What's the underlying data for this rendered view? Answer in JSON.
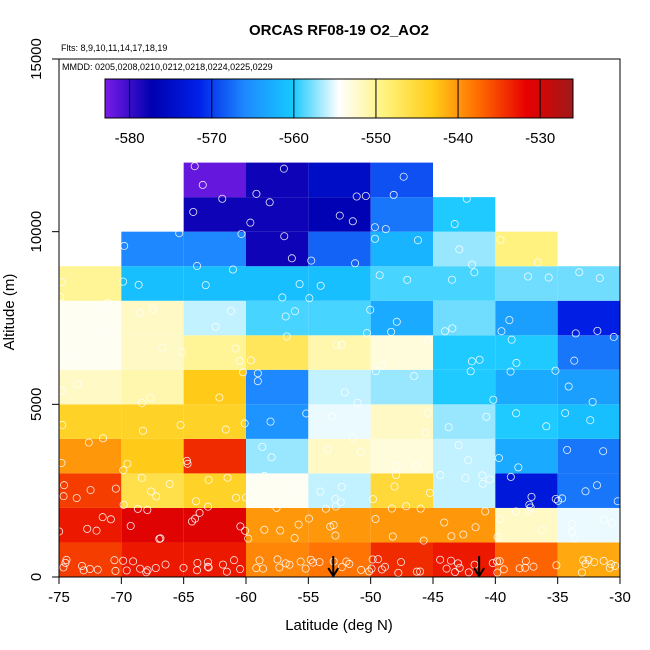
{
  "chart_data": {
    "type": "heatmap",
    "title": "ORCAS RF08-19 O2_AO2",
    "flights_note": "Flts: 8,9,10,11,14,17,18,19",
    "dates_note": "MMDD: 0205,0208,0210,0212,0218,0224,0225,0229",
    "xlabel": "Latitude (deg N)",
    "ylabel": "Altitude (m)",
    "xlim": [
      -75,
      -30
    ],
    "ylim": [
      0,
      15000
    ],
    "x_ticks": [
      "-75",
      "-70",
      "-65",
      "-60",
      "-55",
      "-50",
      "-45",
      "-40",
      "-35",
      "-30"
    ],
    "y_ticks": [
      "0",
      "5000",
      "10000",
      "15000"
    ],
    "y_tick_values": [
      0,
      5000,
      10000,
      15000
    ],
    "colorbar": {
      "range": [
        -583,
        -526
      ],
      "ticks": [
        "-580",
        "-570",
        "-560",
        "-550",
        "-540",
        "-530"
      ],
      "tick_values": [
        -580,
        -570,
        -560,
        -550,
        -540,
        -530
      ],
      "colors": [
        "#7a1ce8",
        "#0000b0",
        "#0020e8",
        "#1e8aff",
        "#16c8ff",
        "#ffffff",
        "#fff27a",
        "#ffcc18",
        "#ff6a00",
        "#e80000",
        "#a01818"
      ]
    },
    "lat_bins": [
      -75,
      -70,
      -65,
      -60,
      -55,
      -50,
      -45,
      -40,
      -35
    ],
    "alt_bins": [
      0,
      1000,
      2000,
      3000,
      4000,
      5000,
      6000,
      7000,
      8000,
      9000,
      10000,
      11000,
      12000
    ],
    "cells": [
      [
        -75,
        0,
        -535
      ],
      [
        -70,
        0,
        -533
      ],
      [
        -65,
        0,
        -533
      ],
      [
        -60,
        0,
        -539
      ],
      [
        -55,
        0,
        -538
      ],
      [
        -50,
        0,
        -534
      ],
      [
        -45,
        0,
        -533
      ],
      [
        -40,
        0,
        -537
      ],
      [
        -35,
        0,
        -541
      ],
      [
        -75,
        1000,
        -533
      ],
      [
        -70,
        1000,
        -531
      ],
      [
        -65,
        1000,
        -531
      ],
      [
        -60,
        1000,
        -540
      ],
      [
        -55,
        1000,
        -540
      ],
      [
        -50,
        1000,
        -540
      ],
      [
        -45,
        1000,
        -540
      ],
      [
        -40,
        1000,
        -552
      ],
      [
        -35,
        1000,
        -555
      ],
      [
        -75,
        2000,
        -535
      ],
      [
        -70,
        2000,
        -546
      ],
      [
        -65,
        2000,
        -544
      ],
      [
        -60,
        2000,
        -554
      ],
      [
        -55,
        2000,
        -556
      ],
      [
        -50,
        2000,
        -545
      ],
      [
        -45,
        2000,
        -556
      ],
      [
        -40,
        2000,
        -573
      ],
      [
        -35,
        2000,
        -567
      ],
      [
        -75,
        3000,
        -540
      ],
      [
        -70,
        3000,
        -543
      ],
      [
        -65,
        3000,
        -534
      ],
      [
        -60,
        3000,
        -557
      ],
      [
        -55,
        3000,
        -552
      ],
      [
        -50,
        3000,
        -553
      ],
      [
        -45,
        3000,
        -556
      ],
      [
        -40,
        3000,
        -563
      ],
      [
        -35,
        3000,
        -567
      ],
      [
        -75,
        4000,
        -544
      ],
      [
        -70,
        4000,
        -544
      ],
      [
        -65,
        4000,
        -544
      ],
      [
        -60,
        4000,
        -565
      ],
      [
        -55,
        4000,
        -555
      ],
      [
        -50,
        4000,
        -552
      ],
      [
        -45,
        4000,
        -557
      ],
      [
        -40,
        4000,
        -560
      ],
      [
        -35,
        4000,
        -561
      ],
      [
        -75,
        5000,
        -552
      ],
      [
        -70,
        5000,
        -551
      ],
      [
        -65,
        5000,
        -543
      ],
      [
        -60,
        5000,
        -566
      ],
      [
        -55,
        5000,
        -556
      ],
      [
        -50,
        5000,
        -557
      ],
      [
        -45,
        5000,
        -560
      ],
      [
        -40,
        5000,
        -563
      ],
      [
        -35,
        5000,
        -564
      ],
      [
        -75,
        6000,
        -554
      ],
      [
        -70,
        6000,
        -552
      ],
      [
        -65,
        6000,
        -550
      ],
      [
        -60,
        6000,
        -547
      ],
      [
        -55,
        6000,
        -551
      ],
      [
        -50,
        6000,
        -553
      ],
      [
        -45,
        6000,
        -560
      ],
      [
        -40,
        6000,
        -560
      ],
      [
        -35,
        6000,
        -567
      ],
      [
        -75,
        7000,
        -554
      ],
      [
        -70,
        7000,
        -552
      ],
      [
        -65,
        7000,
        -556
      ],
      [
        -60,
        7000,
        -559
      ],
      [
        -55,
        7000,
        -559
      ],
      [
        -50,
        7000,
        -563
      ],
      [
        -45,
        7000,
        -558
      ],
      [
        -40,
        7000,
        -564
      ],
      [
        -35,
        7000,
        -572
      ],
      [
        -75,
        8000,
        -550
      ],
      [
        -70,
        8000,
        -561
      ],
      [
        -65,
        8000,
        -561
      ],
      [
        -60,
        8000,
        -561
      ],
      [
        -55,
        8000,
        -561
      ],
      [
        -50,
        8000,
        -559
      ],
      [
        -45,
        8000,
        -559
      ],
      [
        -40,
        8000,
        -558
      ],
      [
        -35,
        8000,
        -558
      ],
      [
        -70,
        9000,
        -566
      ],
      [
        -65,
        9000,
        -566
      ],
      [
        -60,
        9000,
        -578
      ],
      [
        -55,
        9000,
        -568
      ],
      [
        -50,
        9000,
        -562
      ],
      [
        -45,
        9000,
        -557
      ],
      [
        -40,
        9000,
        -549
      ],
      [
        -65,
        10000,
        -578
      ],
      [
        -60,
        10000,
        -578
      ],
      [
        -55,
        10000,
        -577
      ],
      [
        -50,
        10000,
        -567
      ],
      [
        -45,
        10000,
        -560
      ],
      [
        -65,
        11000,
        -582
      ],
      [
        -60,
        11000,
        -578
      ],
      [
        -55,
        11000,
        -575
      ],
      [
        -50,
        11000,
        -569
      ]
    ],
    "arrows_at_latitude": [
      -53,
      -41.3
    ]
  }
}
